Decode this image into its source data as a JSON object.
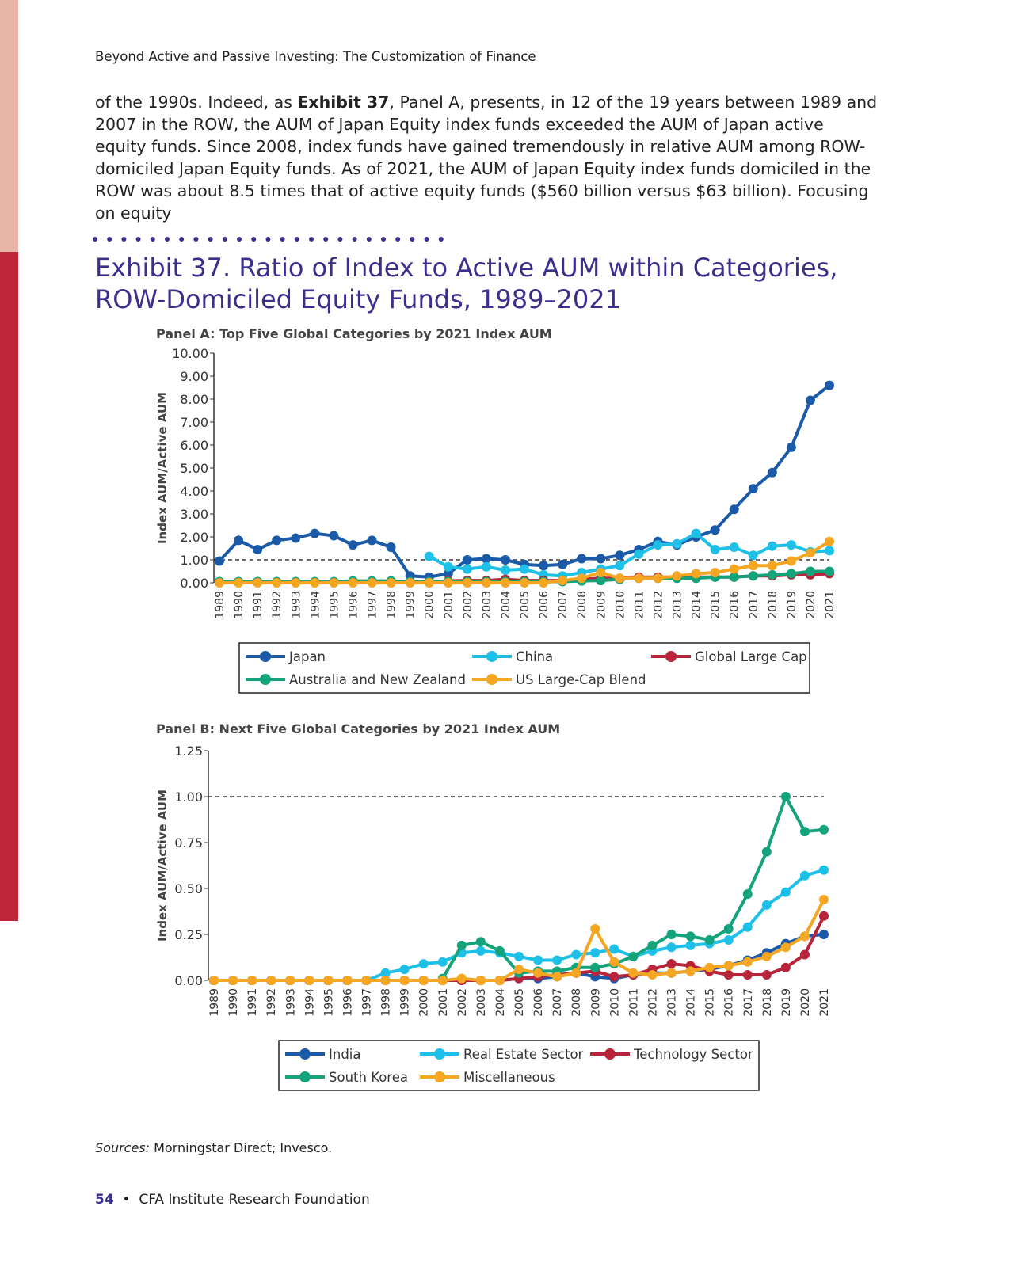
{
  "header": "Beyond Active and Passive Investing: The Customization of Finance",
  "paragraph": [
    "of the 1990s. Indeed, as ",
    "Exhibit 37",
    ", Panel A, presents, in 12 of the 19 years between 1989 and 2007 in the ROW, the AUM of Japan Equity index funds exceeded the AUM of Japan active equity funds. Since 2008, index funds have gained tremendously in relative AUM among ROW-domiciled Japan Equity funds. As of 2021, the AUM of Japan Equity index funds domiciled in the ROW was about 8.5 times that of active equity funds ($560 billion versus $63 billion). Focusing on equity"
  ],
  "exhibit_title": "Exhibit 37. Ratio of Index to Active AUM within Categories, ROW-Domiciled Equity Funds, 1989–2021",
  "chart_data": [
    {
      "type": "line",
      "title": "Panel A: Top Five Global Categories by 2021 Index AUM",
      "y_label": "Index AUM/Active AUM",
      "categories": [
        "1989",
        "1990",
        "1991",
        "1992",
        "1993",
        "1994",
        "1995",
        "1996",
        "1997",
        "1998",
        "1999",
        "2000",
        "2001",
        "2002",
        "2003",
        "2004",
        "2005",
        "2006",
        "2007",
        "2008",
        "2009",
        "2010",
        "2011",
        "2012",
        "2013",
        "2014",
        "2015",
        "2016",
        "2017",
        "2018",
        "2019",
        "2020",
        "2021"
      ],
      "ylim": [
        0,
        10
      ],
      "yticks": [
        {
          "value": 0,
          "label": "0.00"
        },
        {
          "value": 1,
          "label": "1.00"
        },
        {
          "value": 2,
          "label": "2.00"
        },
        {
          "value": 3,
          "label": "3.00"
        },
        {
          "value": 4,
          "label": "4.00"
        },
        {
          "value": 5,
          "label": "5.00"
        },
        {
          "value": 6,
          "label": "6.00"
        },
        {
          "value": 7,
          "label": "7.00"
        },
        {
          "value": 8,
          "label": "8.00"
        },
        {
          "value": 9,
          "label": "9.00"
        },
        {
          "value": 10,
          "label": "10.00"
        }
      ],
      "reference_line": 1,
      "series": [
        {
          "name": "Japan",
          "color": "#1a5aa8",
          "values": [
            0.95,
            1.85,
            1.45,
            1.85,
            1.95,
            2.15,
            2.05,
            1.65,
            1.85,
            1.55,
            0.3,
            0.25,
            0.4,
            1.0,
            1.05,
            1.0,
            0.8,
            0.75,
            0.8,
            1.05,
            1.05,
            1.2,
            1.45,
            1.8,
            1.65,
            2.0,
            2.3,
            3.2,
            4.1,
            4.8,
            5.9,
            7.95,
            8.6
          ]
        },
        {
          "name": "China",
          "color": "#1ec0e8",
          "values": [
            null,
            null,
            null,
            null,
            null,
            null,
            null,
            null,
            null,
            null,
            null,
            1.15,
            0.7,
            0.6,
            0.7,
            0.55,
            0.6,
            0.35,
            0.3,
            0.45,
            0.6,
            0.75,
            1.25,
            1.65,
            1.7,
            2.15,
            1.45,
            1.55,
            1.2,
            1.6,
            1.65,
            1.35,
            1.4
          ]
        },
        {
          "name": "Global Large Cap",
          "color": "#b8243a",
          "values": [
            0.02,
            0.02,
            0.02,
            0.02,
            0.02,
            0.02,
            0.02,
            0.02,
            0.02,
            0.02,
            0.02,
            0.05,
            0.08,
            0.1,
            0.1,
            0.15,
            0.1,
            0.1,
            0.1,
            0.15,
            0.2,
            0.2,
            0.25,
            0.25,
            0.25,
            0.25,
            0.25,
            0.25,
            0.3,
            0.3,
            0.35,
            0.35,
            0.4
          ]
        },
        {
          "name": "Australia and New Zealand",
          "color": "#14a37a",
          "values": [
            0.05,
            0.05,
            0.05,
            0.05,
            0.05,
            0.05,
            0.05,
            0.08,
            0.08,
            0.08,
            0.05,
            0.05,
            0.05,
            0.05,
            0.05,
            0.05,
            0.05,
            0.05,
            0.05,
            0.08,
            0.1,
            0.15,
            0.2,
            0.2,
            0.2,
            0.2,
            0.25,
            0.25,
            0.3,
            0.35,
            0.4,
            0.5,
            0.5
          ]
        },
        {
          "name": "US Large-Cap Blend",
          "color": "#f5a623",
          "values": [
            0,
            0,
            0,
            0,
            0,
            0,
            0,
            0,
            0,
            0,
            0,
            0,
            0,
            0,
            0,
            0,
            0,
            0,
            0.1,
            0.2,
            0.45,
            0.2,
            0.2,
            0.2,
            0.3,
            0.4,
            0.45,
            0.6,
            0.75,
            0.75,
            0.95,
            1.3,
            1.8
          ]
        }
      ]
    },
    {
      "type": "line",
      "title": "Panel B: Next Five Global Categories by 2021 Index AUM",
      "y_label": "Index AUM/Active AUM",
      "categories": [
        "1989",
        "1990",
        "1991",
        "1992",
        "1993",
        "1994",
        "1995",
        "1996",
        "1997",
        "1998",
        "1999",
        "2000",
        "2001",
        "2002",
        "2003",
        "2004",
        "2005",
        "2006",
        "2007",
        "2008",
        "2009",
        "2010",
        "2011",
        "2012",
        "2013",
        "2014",
        "2015",
        "2016",
        "2017",
        "2018",
        "2019",
        "2020",
        "2021"
      ],
      "ylim": [
        0,
        1.25
      ],
      "yticks": [
        {
          "value": 0,
          "label": "0.00"
        },
        {
          "value": 0.25,
          "label": "0.25"
        },
        {
          "value": 0.5,
          "label": "0.50"
        },
        {
          "value": 0.75,
          "label": "0.75"
        },
        {
          "value": 1,
          "label": "1.00"
        },
        {
          "value": 1.25,
          "label": "1.25"
        }
      ],
      "reference_line": 1,
      "series": [
        {
          "name": "India",
          "color": "#1a5aa8",
          "values": [
            0,
            0,
            0,
            0,
            0,
            0,
            0,
            0,
            0,
            0,
            0,
            0,
            0,
            0,
            0,
            0,
            0.01,
            0.01,
            0.02,
            0.04,
            0.02,
            0.01,
            0.03,
            0.04,
            0.04,
            0.05,
            0.06,
            0.08,
            0.11,
            0.15,
            0.2,
            0.24,
            0.25
          ]
        },
        {
          "name": "Real Estate Sector",
          "color": "#1ec0e8",
          "values": [
            0,
            0,
            0,
            0,
            0,
            0,
            0,
            0,
            0,
            0.04,
            0.06,
            0.09,
            0.1,
            0.15,
            0.16,
            0.15,
            0.13,
            0.11,
            0.11,
            0.14,
            0.15,
            0.17,
            0.13,
            0.16,
            0.18,
            0.19,
            0.2,
            0.22,
            0.29,
            0.41,
            0.48,
            0.57,
            0.6
          ]
        },
        {
          "name": "Technology Sector",
          "color": "#b8243a",
          "values": [
            0,
            0,
            0,
            0,
            0,
            0,
            0,
            0,
            0,
            0,
            0,
            0,
            0,
            0,
            0,
            0,
            0.01,
            0.02,
            0.03,
            0.04,
            0.05,
            0.02,
            0.03,
            0.06,
            0.09,
            0.08,
            0.05,
            0.03,
            0.03,
            0.03,
            0.07,
            0.14,
            0.35
          ]
        },
        {
          "name": "South Korea",
          "color": "#14a37a",
          "values": [
            null,
            null,
            null,
            null,
            null,
            null,
            null,
            null,
            null,
            null,
            null,
            null,
            0.01,
            0.19,
            0.21,
            0.16,
            0.04,
            0.05,
            0.05,
            0.07,
            0.07,
            0.09,
            0.13,
            0.19,
            0.25,
            0.24,
            0.22,
            0.28,
            0.47,
            0.7,
            1.0,
            0.81,
            0.82
          ]
        },
        {
          "name": "Miscellaneous",
          "color": "#f5a623",
          "values": [
            0,
            0,
            0,
            0,
            0,
            0,
            0,
            0,
            0,
            0,
            0,
            0,
            0,
            0.01,
            0,
            0,
            0.06,
            0.04,
            0.02,
            0.04,
            0.28,
            0.1,
            0.04,
            0.03,
            0.04,
            0.05,
            0.07,
            0.08,
            0.1,
            0.13,
            0.18,
            0.24,
            0.44
          ]
        }
      ]
    }
  ],
  "sources": [
    "Sources:",
    " Morningstar Direct; Invesco."
  ],
  "footer": {
    "page": "54",
    "publisher": "CFA Institute Research Foundation"
  }
}
